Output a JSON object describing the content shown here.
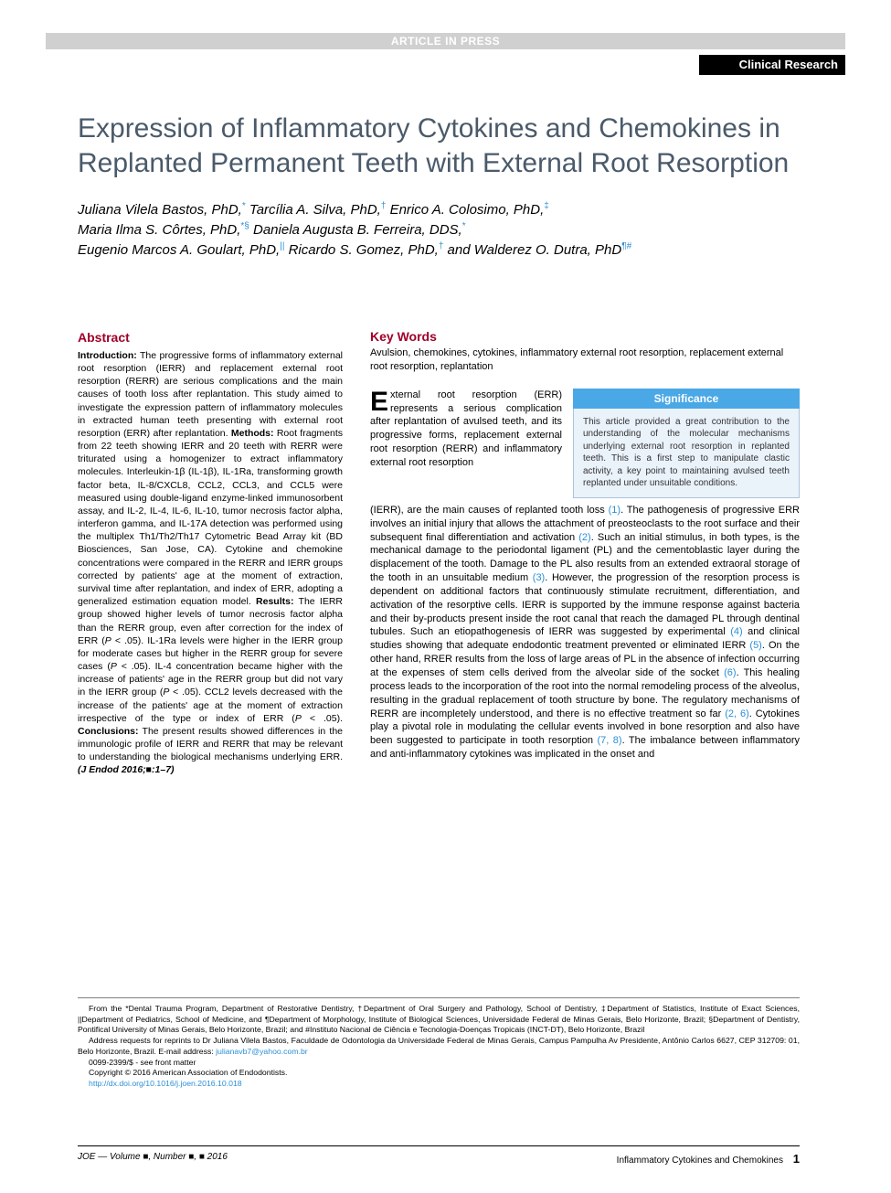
{
  "header_bar": "ARTICLE IN PRESS",
  "section_label": "Clinical Research",
  "title": "Expression of Inflammatory Cytokines and Chemokines in Replanted Permanent Teeth with External Root Resorption",
  "authors_html": "Juliana Vilela Bastos, PhD,<span class='sup blue'>*</span> Tarcília A. Silva, PhD,<span class='sup blue'>†</span> Enrico A. Colosimo, PhD,<span class='sup blue'>‡</span><br>Maria Ilma S. Côrtes, PhD,<span class='sup blue'>*§</span> Daniela Augusta B. Ferreira, DDS,<span class='sup blue'>*</span><br>Eugenio Marcos A. Goulart, PhD,<span class='sup blue'>||</span> Ricardo S. Gomez, PhD,<span class='sup blue'>†</span> and Walderez O. Dutra, PhD<span class='sup blue'>¶#</span>",
  "abstract": {
    "heading": "Abstract",
    "intro_label": "Introduction:",
    "intro": " The progressive forms of inflammatory external root resorption (IERR) and replacement external root resorption (RERR) are serious complications and the main causes of tooth loss after replantation. This study aimed to investigate the expression pattern of inflammatory molecules in extracted human teeth presenting with external root resorption (ERR) after replantation. ",
    "methods_label": "Methods:",
    "methods": " Root fragments from 22 teeth showing IERR and 20 teeth with RERR were triturated using a homogenizer to extract inflammatory molecules. Interleukin-1β (IL-1β), IL-1Ra, transforming growth factor beta, IL-8/CXCL8, CCL2, CCL3, and CCL5 were measured using double-ligand enzyme-linked immunosorbent assay, and IL-2, IL-4, IL-6, IL-10, tumor necrosis factor alpha, interferon gamma, and IL-17A detection was performed using the multiplex Th1/Th2/Th17 Cytometric Bead Array kit (BD Biosciences, San Jose, CA). Cytokine and chemokine concentrations were compared in the RERR and IERR groups corrected by patients' age at the moment of extraction, survival time after replantation, and index of ERR, adopting a generalized estimation equation model. ",
    "results_label": "Results:",
    "results": " The IERR group showed higher levels of tumor necrosis factor alpha than the RERR group, even after correction for the index of ERR (<i>P</i> < .05). IL-1Ra levels were higher in the IERR group for moderate cases but higher in the RERR group for severe cases (<i>P</i> < .05). IL-4 concentration became higher with the increase of patients' age in the RERR group but did not vary in the IERR group (<i>P</i> < .05). CCL2 levels decreased with the increase of the patients' age at the moment of extraction irrespective of the type or index of ERR (<i>P</i> < .05). ",
    "conclusions_label": "Conclusions:",
    "conclusions": " The present results showed differences in the immunologic profile of IERR and RERR that may be relevant to understanding the biological mechanisms underlying ERR. ",
    "citation": "(J Endod 2016;■:1–7)"
  },
  "keywords": {
    "heading": "Key Words",
    "text": "Avulsion, chemokines, cytokines, inflammatory external root resorption, replacement external root resorption, replantation"
  },
  "significance": {
    "heading": "Significance",
    "text": "This article provided a great contribution to the understanding of the molecular mechanisms underlying external root resorption in replanted teeth. This is a first step to manipulate clastic activity, a key point to maintaining avulsed teeth replanted under unsuitable conditions."
  },
  "body": {
    "dropcap": "E",
    "lead": "xternal root resorption (ERR) represents a serious complication after replantation of avulsed teeth, and its progressive forms, replacement external root resorption (RERR) and inflammatory external root resorption",
    "continuation": "(IERR), are the main causes of replanted tooth loss <span class='link'>(1)</span>. The pathogenesis of progressive ERR involves an initial injury that allows the attachment of preosteoclasts to the root surface and their subsequent final differentiation and activation <span class='link'>(2)</span>. Such an initial stimulus, in both types, is the mechanical damage to the periodontal ligament (PL) and the cementoblastic layer during the displacement of the tooth. Damage to the PL also results from an extended extraoral storage of the tooth in an unsuitable medium <span class='link'>(3)</span>. However, the progression of the resorption process is dependent on additional factors that continuously stimulate recruitment, differentiation, and activation of the resorptive cells. IERR is supported by the immune response against bacteria and their by-products present inside the root canal that reach the damaged PL through dentinal tubules. Such an etiopathogenesis of IERR was suggested by experimental <span class='link'>(4)</span> and clinical studies showing that adequate endodontic treatment prevented or eliminated IERR <span class='link'>(5)</span>. On the other hand, RRER results from the loss of large areas of PL in the absence of infection occurring at the expenses of stem cells derived from the alveolar side of the socket <span class='link'>(6)</span>. This healing process leads to the incorporation of the root into the normal remodeling process of the alveolus, resulting in the gradual replacement of tooth structure by bone. The regulatory mechanisms of RERR are incompletely understood, and there is no effective treatment so far <span class='link'>(2, 6)</span>. Cytokines play a pivotal role in modulating the cellular events involved in bone resorption and also have been suggested to participate in tooth resorption <span class='link'>(7, 8)</span>. The imbalance between inflammatory and anti-inflammatory cytokines was implicated in the onset and"
  },
  "footnotes": {
    "affil": "From the *Dental Trauma Program, Department of Restorative Dentistry, †Department of Oral Surgery and Pathology, School of Dentistry, ‡Department of Statistics, Institute of Exact Sciences, ||Department of Pediatrics, School of Medicine, and ¶Department of Morphology, Institute of Biological Sciences, Universidade Federal de Minas Gerais, Belo Horizonte, Brazil; §Department of Dentistry, Pontifical University of Minas Gerais, Belo Horizonte, Brazil; and #Instituto Nacional de Ciência e Tecnologia-Doenças Tropicais (INCT-DT), Belo Horizonte, Brazil",
    "reprint": "Address requests for reprints to Dr Juliana Vilela Bastos, Faculdade de Odontologia da Universidade Federal de Minas Gerais, Campus Pampulha Av Presidente, Antônio Carlos 6627, CEP 312709: 01, Belo Horizonte, Brazil. E-mail address: ",
    "email": "julianavb7@yahoo.com.br",
    "issn": "0099-2399/$ - see front matter",
    "copyright": "Copyright © 2016 American Association of Endodontists.",
    "doi": "http://dx.doi.org/10.1016/j.joen.2016.10.018"
  },
  "footer": {
    "left": "JOE — Volume ■, Number ■, ■ 2016",
    "right": "Inflammatory Cytokines and Chemokines",
    "page": "1"
  },
  "colors": {
    "header_bg": "#d0d0d0",
    "section_bg": "#000000",
    "title_color": "#4a5a6a",
    "abstract_head": "#a00028",
    "link_color": "#2a8fd6",
    "sig_head_bg": "#4aa8e6",
    "sig_body_bg": "#eaf2fa",
    "sig_border": "#aac4dc"
  }
}
